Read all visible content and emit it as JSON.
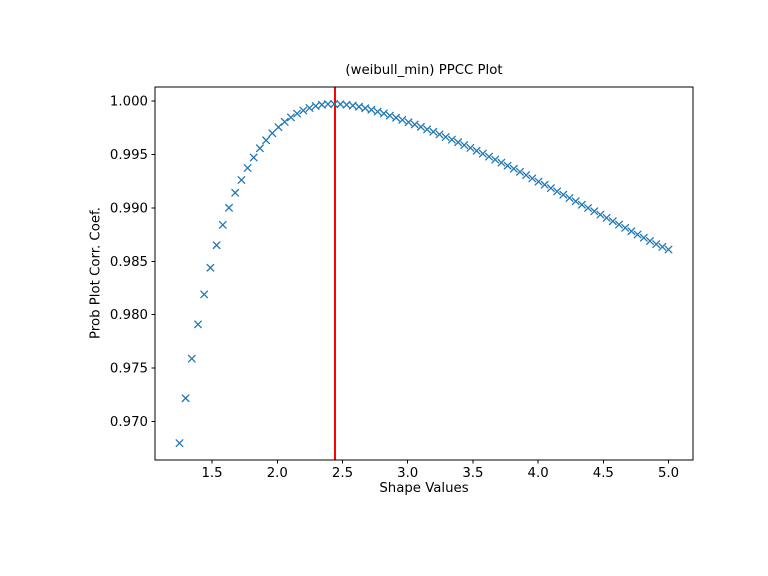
{
  "chart_data": {
    "type": "scatter",
    "title": "(weibull_min) PPCC Plot",
    "xlabel": "Shape Values",
    "ylabel": "Prob Plot Corr. Coef.",
    "marker": "x",
    "marker_color": "#1f77b4",
    "grid": false,
    "legend": null,
    "xlim": [
      1.0625,
      5.1875
    ],
    "ylim": [
      0.96642,
      1.00129
    ],
    "xticks": [
      1.5,
      2.0,
      2.5,
      3.0,
      3.5,
      4.0,
      4.5,
      5.0
    ],
    "xtick_labels": [
      "1.5",
      "2.0",
      "2.5",
      "3.0",
      "3.5",
      "4.0",
      "4.5",
      "5.0"
    ],
    "yticks": [
      0.97,
      0.975,
      0.98,
      0.985,
      0.99,
      0.995,
      1.0
    ],
    "ytick_labels": [
      "0.970",
      "0.975",
      "0.980",
      "0.985",
      "0.990",
      "0.995",
      "1.000"
    ],
    "vline": {
      "x": 2.4435,
      "color": "#ff0000"
    },
    "points": [
      [
        1.25,
        0.968
      ],
      [
        1.2975,
        0.9722
      ],
      [
        1.3449,
        0.9759
      ],
      [
        1.3924,
        0.9791
      ],
      [
        1.4399,
        0.9819
      ],
      [
        1.4873,
        0.9844
      ],
      [
        1.5348,
        0.9865
      ],
      [
        1.5823,
        0.9884
      ],
      [
        1.6297,
        0.99
      ],
      [
        1.6772,
        0.9914
      ],
      [
        1.7247,
        0.9926
      ],
      [
        1.7722,
        0.99372
      ],
      [
        1.8196,
        0.9947
      ],
      [
        1.8671,
        0.99556
      ],
      [
        1.9146,
        0.99631
      ],
      [
        1.962,
        0.99697
      ],
      [
        2.0095,
        0.99754
      ],
      [
        2.057,
        0.99803
      ],
      [
        2.1044,
        0.99845
      ],
      [
        2.1519,
        0.9988
      ],
      [
        2.1994,
        0.99909
      ],
      [
        2.2468,
        0.99933
      ],
      [
        2.2943,
        0.99951
      ],
      [
        2.3418,
        0.99963
      ],
      [
        2.3892,
        0.99969
      ],
      [
        2.4367,
        0.9997
      ],
      [
        2.4842,
        0.99968
      ],
      [
        2.5316,
        0.99963
      ],
      [
        2.5791,
        0.99955
      ],
      [
        2.6266,
        0.99944
      ],
      [
        2.6741,
        0.99931
      ],
      [
        2.7215,
        0.99916
      ],
      [
        2.769,
        0.99899
      ],
      [
        2.8165,
        0.99881
      ],
      [
        2.8639,
        0.99862
      ],
      [
        2.9114,
        0.99842
      ],
      [
        2.9589,
        0.99821
      ],
      [
        3.0063,
        0.998
      ],
      [
        3.0538,
        0.99778
      ],
      [
        3.1013,
        0.99756
      ],
      [
        3.1487,
        0.99733
      ],
      [
        3.1962,
        0.9971
      ],
      [
        3.2437,
        0.99686
      ],
      [
        3.2911,
        0.99662
      ],
      [
        3.3386,
        0.99637
      ],
      [
        3.3861,
        0.99612
      ],
      [
        3.4335,
        0.99586
      ],
      [
        3.481,
        0.9956
      ],
      [
        3.5285,
        0.99533
      ],
      [
        3.5759,
        0.99506
      ],
      [
        3.6234,
        0.99478
      ],
      [
        3.6709,
        0.9945
      ],
      [
        3.7184,
        0.99422
      ],
      [
        3.7658,
        0.99393
      ],
      [
        3.8133,
        0.99364
      ],
      [
        3.8608,
        0.99335
      ],
      [
        3.9082,
        0.99305
      ],
      [
        3.9557,
        0.99275
      ],
      [
        4.0032,
        0.99245
      ],
      [
        4.0506,
        0.99215
      ],
      [
        4.0981,
        0.99184
      ],
      [
        4.1456,
        0.99153
      ],
      [
        4.193,
        0.99122
      ],
      [
        4.2405,
        0.99091
      ],
      [
        4.288,
        0.9906
      ],
      [
        4.3354,
        0.99029
      ],
      [
        4.3829,
        0.98998
      ],
      [
        4.4304,
        0.98967
      ],
      [
        4.4778,
        0.98936
      ],
      [
        4.5253,
        0.98905
      ],
      [
        4.5728,
        0.98874
      ],
      [
        4.6203,
        0.98843
      ],
      [
        4.6677,
        0.98812
      ],
      [
        4.7152,
        0.98781
      ],
      [
        4.7627,
        0.9875
      ],
      [
        4.8101,
        0.98719
      ],
      [
        4.8576,
        0.98689
      ],
      [
        4.9051,
        0.9866
      ],
      [
        4.9525,
        0.98634
      ],
      [
        5.0,
        0.9861
      ]
    ]
  },
  "style": {
    "background": "#ffffff",
    "spine_color": "#000000",
    "tick_color": "#000000"
  }
}
